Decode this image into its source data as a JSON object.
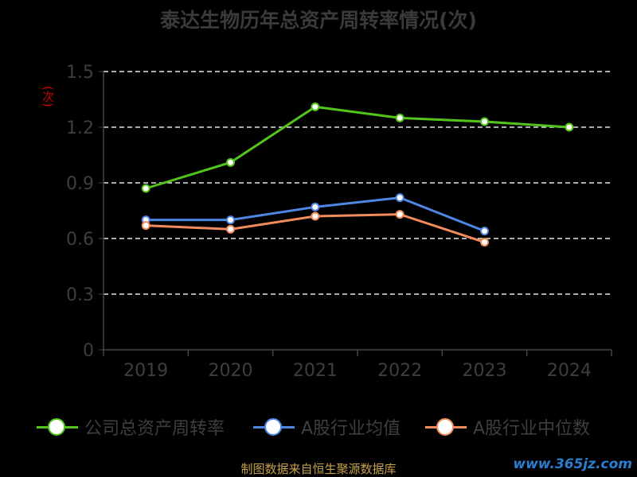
{
  "chart_data": {
    "type": "line",
    "title": "泰达生物历年总资产周转率情况(次)",
    "ylabel": "(次)",
    "categories": [
      "2019",
      "2020",
      "2021",
      "2022",
      "2023",
      "2024"
    ],
    "ylim": [
      0,
      1.5
    ],
    "yticks": [
      "0",
      "0.3",
      "0.6",
      "0.9",
      "1.2",
      "1.5"
    ],
    "grid": true,
    "legend_position": "bottom",
    "series": [
      {
        "name": "公司总资产周转率",
        "color": "#52c41a",
        "values": [
          0.87,
          1.01,
          1.31,
          1.25,
          1.23,
          1.2
        ]
      },
      {
        "name": "A股行业均值",
        "color": "#4e86e4",
        "values": [
          0.7,
          0.7,
          0.77,
          0.82,
          0.64,
          null
        ]
      },
      {
        "name": "A股行业中位数",
        "color": "#f28c5c",
        "values": [
          0.67,
          0.65,
          0.72,
          0.73,
          0.58,
          null
        ]
      }
    ]
  },
  "footer": {
    "source": "制图数据来自恒生聚源数据库",
    "watermark": "www.365jz.com"
  }
}
